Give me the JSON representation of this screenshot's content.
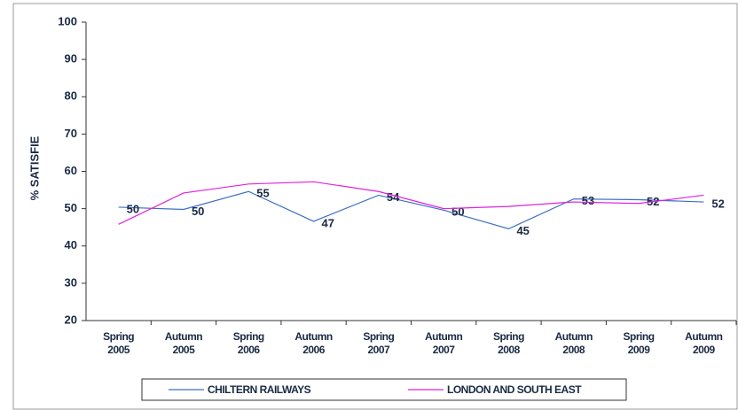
{
  "chart_data": {
    "type": "line",
    "y_label": "% SATISFIE",
    "categories": [
      "Spring 2005",
      "Autumn 2005",
      "Spring 2006",
      "Autumn 2006",
      "Spring 2007",
      "Autumn 2007",
      "Spring 2008",
      "Autumn 2008",
      "Spring 2009",
      "Autumn 2009"
    ],
    "series": [
      {
        "name": "CHILTERN RAILWAYS",
        "color": "#3a6fc4",
        "values": [
          50.4,
          49.8,
          54.6,
          46.6,
          53.6,
          49.6,
          44.6,
          52.6,
          52.4,
          51.8
        ],
        "value_labels": [
          "50",
          "50",
          "55",
          "47",
          "54",
          "50",
          "45",
          "53",
          "52",
          "52"
        ]
      },
      {
        "name": "LONDON AND SOUTH EAST",
        "color": "#e020e0",
        "values": [
          45.8,
          54.2,
          56.6,
          57.2,
          54.6,
          50,
          50.6,
          51.8,
          51.4,
          53.6
        ]
      }
    ],
    "ylim": [
      20,
      100
    ],
    "yticks": [
      20,
      30,
      40,
      50,
      60,
      70,
      80,
      90,
      100
    ],
    "legend": "bottom"
  }
}
